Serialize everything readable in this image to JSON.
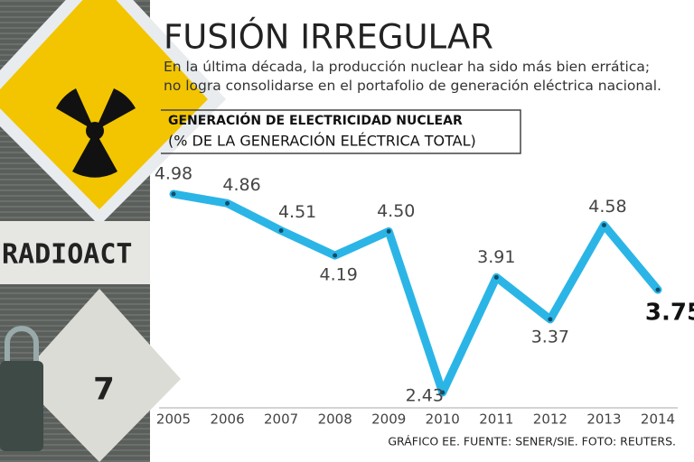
{
  "chart_data": {
    "type": "line",
    "title": "FUSIÓN IRREGULAR",
    "subtitle": "En la última década, la producción nuclear ha sido más bien errática; no logra consolidarse en el portafolio de generación eléctrica nacional.",
    "chart_label": "GENERACIÓN DE ELECTRICIDAD NUCLEAR",
    "chart_sublabel": "(% DE LA GENERACIÓN ELÉCTRICA TOTAL)",
    "categories": [
      "2005",
      "2006",
      "2007",
      "2008",
      "2009",
      "2010",
      "2011",
      "2012",
      "2013",
      "2014"
    ],
    "values": [
      4.98,
      4.86,
      4.51,
      4.19,
      4.5,
      2.43,
      3.91,
      3.37,
      4.58,
      3.75
    ],
    "value_labels": [
      "4.98",
      "4.86",
      "4.51",
      "4.19",
      "4.50",
      "2.43",
      "3.91",
      "3.37",
      "4.58",
      "3.75"
    ],
    "color": "#2bb5e6",
    "source": "GRÁFICO EE. FUENTE: SENER/SIE. FOTO: REUTERS.",
    "photo": {
      "sign_text": "RADIOACT",
      "number": "7"
    }
  }
}
